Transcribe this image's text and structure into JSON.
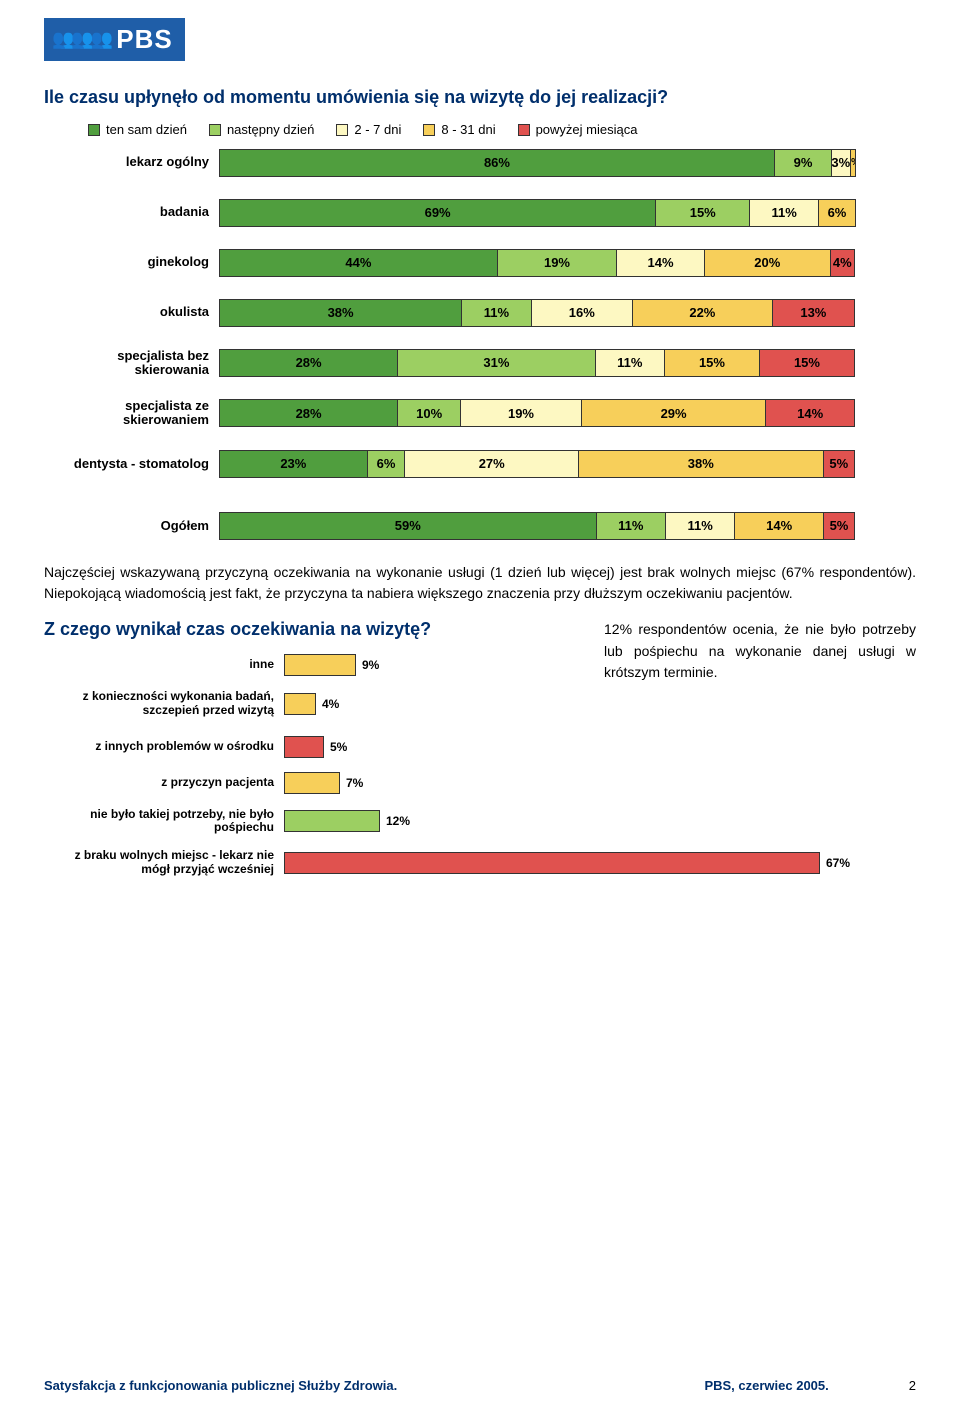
{
  "logo": {
    "brand": "PBS"
  },
  "q1": {
    "title": "Ile czasu upłynęło od momentu umówienia się na wizytę do jej realizacji?",
    "legend": [
      {
        "label": "ten sam dzień",
        "color": "#509e3e"
      },
      {
        "label": "następny dzień",
        "color": "#9ccf62"
      },
      {
        "label": "2 - 7 dni",
        "color": "#fdf8c2"
      },
      {
        "label": "8 - 31 dni",
        "color": "#f7cf5a"
      },
      {
        "label": "powyżej miesiąca",
        "color": "#e0524f"
      }
    ],
    "rows": [
      {
        "label": "lekarz ogólny",
        "values": [
          86,
          9,
          3,
          1,
          0
        ],
        "labels": [
          "86%",
          "9%",
          "3%",
          "1%",
          ""
        ]
      },
      {
        "label": "badania",
        "values": [
          69,
          15,
          11,
          6,
          0
        ],
        "labels": [
          "69%",
          "15%",
          "11%",
          "6%",
          ""
        ]
      },
      {
        "label": "ginekolog",
        "values": [
          44,
          19,
          14,
          20,
          4
        ],
        "labels": [
          "44%",
          "19%",
          "14%",
          "20%",
          "4%"
        ]
      },
      {
        "label": "okulista",
        "values": [
          38,
          11,
          16,
          22,
          13
        ],
        "labels": [
          "38%",
          "11%",
          "16%",
          "22%",
          "13%"
        ]
      },
      {
        "label": "specjalista bez skierowania",
        "values": [
          28,
          31,
          11,
          15,
          15
        ],
        "labels": [
          "28%",
          "31%",
          "11%",
          "15%",
          "15%"
        ]
      },
      {
        "label": "specjalista ze skierowaniem",
        "values": [
          28,
          10,
          19,
          29,
          14
        ],
        "labels": [
          "28%",
          "10%",
          "19%",
          "29%",
          "14%"
        ]
      },
      {
        "label": "dentysta - stomatolog",
        "values": [
          23,
          6,
          27,
          38,
          5
        ],
        "labels": [
          "23%",
          "6%",
          "27%",
          "38%",
          "5%"
        ]
      },
      {
        "label": "Ogółem",
        "values": [
          59,
          11,
          11,
          14,
          5
        ],
        "labels": [
          "59%",
          "11%",
          "11%",
          "14%",
          "5%"
        ]
      }
    ]
  },
  "paragraph": "Najczęściej wskazywaną przyczyną oczekiwania na wykonanie usługi (1 dzień lub więcej) jest brak wolnych miejsc (67% respondentów). Niepokojącą wiadomością jest fakt, że przyczyna ta nabiera większego znaczenia przy dłuższym oczekiwaniu pacjentów.",
  "q2": {
    "title": "Z czego wynikał czas oczekiwania na wizytę?",
    "side_text": "12% respondentów ocenia, że nie było potrzeby lub pośpiechu na wykonanie danej usługi w krótszym terminie.",
    "max": 70,
    "rows": [
      {
        "label": "inne",
        "value": 9,
        "display": "9%",
        "color": "#f7cf5a"
      },
      {
        "label": "z konieczności wykonania badań, szczepień przed wizytą",
        "value": 4,
        "display": "4%",
        "color": "#f7cf5a"
      },
      {
        "label": "z innych problemów w ośrodku",
        "value": 5,
        "display": "5%",
        "color": "#e0524f"
      },
      {
        "label": "z przyczyn pacjenta",
        "value": 7,
        "display": "7%",
        "color": "#f7cf5a"
      },
      {
        "label": "nie było takiej potrzeby, nie było pośpiechu",
        "value": 12,
        "display": "12%",
        "color": "#9ccf62"
      },
      {
        "label": "z braku wolnych miejsc - lekarz nie mógł przyjąć wcześniej",
        "value": 67,
        "display": "67%",
        "color": "#e0524f"
      }
    ]
  },
  "footer": {
    "title": "Satysfakcja z funkcjonowania publicznej Służby Zdrowia.",
    "source": "PBS, czerwiec 2005.",
    "page": "2"
  }
}
